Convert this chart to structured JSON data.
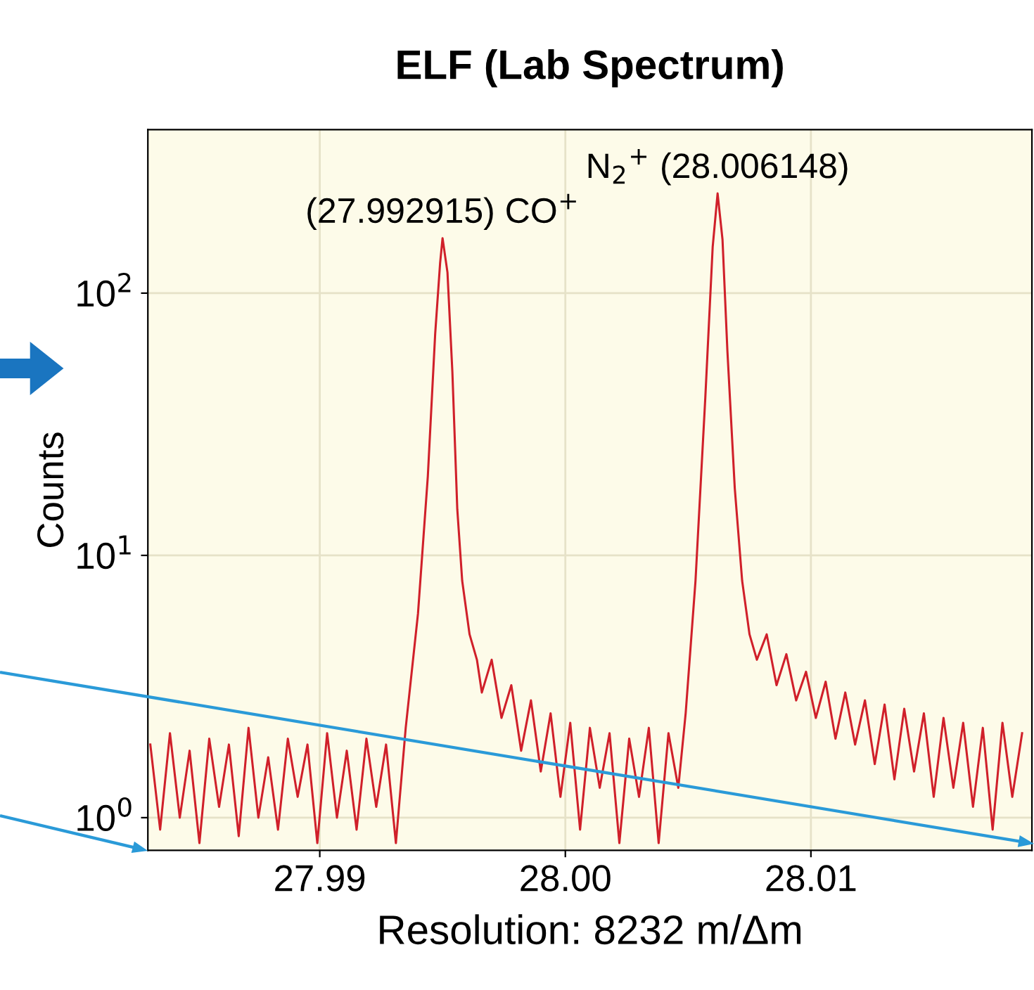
{
  "chart_data": {
    "type": "line",
    "title": "ELF (Lab Spectrum)",
    "xlabel": "Resolution: 8232 m/Δm",
    "ylabel": "Counts",
    "log": "y",
    "grid": true,
    "line_style": "solid",
    "xlim": [
      27.983,
      28.019
    ],
    "xticks": [
      27.99,
      {
        "value": 28.0,
        "label": "28.00"
      },
      28.01
    ],
    "ylim": [
      0.75,
      420
    ],
    "yticks": [
      {
        "value": 1,
        "label": "10$^{0}$"
      },
      {
        "value": 10,
        "label": "10$^{1}$"
      },
      {
        "value": 100,
        "label": "10$^{2}$"
      }
    ],
    "annotations": [
      {
        "text": "(27.992915) CO$^{+}$",
        "x": 27.995,
        "y": 162
      },
      {
        "text": "N$_{2}$$^{+}$ (28.006148)",
        "x": 28.0062,
        "y": 240
      }
    ],
    "series": [
      {
        "color": "#d0202a",
        "x": [
          27.9831,
          27.9835,
          27.9839,
          27.9843,
          27.9847,
          27.9851,
          27.9855,
          27.9859,
          27.9863,
          27.9867,
          27.9871,
          27.9875,
          27.9879,
          27.9883,
          27.9887,
          27.9891,
          27.9895,
          27.9899,
          27.9903,
          27.9907,
          27.9911,
          27.9915,
          27.9919,
          27.9923,
          27.9927,
          27.9931,
          27.9935,
          27.994,
          27.9944,
          27.9947,
          27.9949,
          27.995,
          27.9952,
          27.9954,
          27.9956,
          27.9958,
          27.9961,
          27.9964,
          27.9966,
          27.997,
          27.9974,
          27.9978,
          27.9982,
          27.9986,
          27.999,
          27.9994,
          27.9998,
          28.0002,
          28.0006,
          28.001,
          28.0014,
          28.0018,
          28.0022,
          28.0026,
          28.003,
          28.0034,
          28.0038,
          28.0042,
          28.0046,
          28.0049,
          28.0053,
          28.0057,
          28.006,
          28.0062,
          28.0064,
          28.0066,
          28.0069,
          28.0072,
          28.0075,
          28.0078,
          28.0082,
          28.0086,
          28.009,
          28.0094,
          28.0098,
          28.0102,
          28.0106,
          28.011,
          28.0114,
          28.0118,
          28.0122,
          28.0126,
          28.013,
          28.0134,
          28.0138,
          28.0142,
          28.0146,
          28.015,
          28.0154,
          28.0158,
          28.0162,
          28.0166,
          28.017,
          28.0174,
          28.0178,
          28.0182,
          28.0186
        ],
        "values": [
          1.9,
          0.9,
          2.1,
          1.0,
          1.8,
          0.8,
          2.0,
          1.1,
          1.9,
          0.85,
          2.2,
          1.0,
          1.7,
          0.9,
          2.0,
          1.2,
          1.9,
          0.8,
          2.1,
          1.0,
          1.8,
          0.9,
          2.0,
          1.1,
          1.9,
          0.8,
          2.2,
          6,
          20,
          70,
          130,
          162,
          120,
          50,
          15,
          8,
          5,
          4,
          3.0,
          4.0,
          2.4,
          3.2,
          1.8,
          2.8,
          1.5,
          2.5,
          1.2,
          2.3,
          0.9,
          2.2,
          1.3,
          2.1,
          0.8,
          2.0,
          1.2,
          2.2,
          0.8,
          2.1,
          1.3,
          2.5,
          8,
          40,
          150,
          240,
          160,
          60,
          18,
          8,
          5,
          4.0,
          5.0,
          3.2,
          4.2,
          2.8,
          3.6,
          2.4,
          3.3,
          2.0,
          3.0,
          1.9,
          2.8,
          1.6,
          2.7,
          1.4,
          2.6,
          1.5,
          2.5,
          1.2,
          2.4,
          1.3,
          2.3,
          1.1,
          2.2,
          0.9,
          2.3,
          1.2,
          2.1
        ]
      }
    ]
  }
}
